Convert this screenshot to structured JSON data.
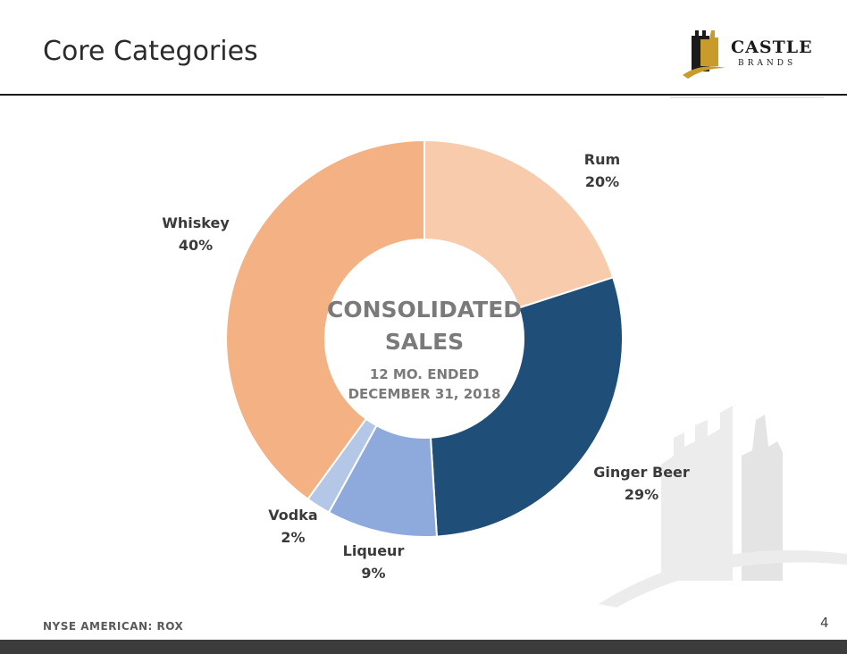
{
  "header": {
    "title": "Core Categories",
    "logo_line1": "CASTLE",
    "logo_line2": "BRANDS"
  },
  "footer": {
    "ticker": "NYSE AMERICAN: ROX",
    "page_number": "4"
  },
  "chart_data": {
    "type": "pie",
    "style": "donut",
    "center_title_line1": "CONSOLIDATED",
    "center_title_line2": "SALES",
    "center_sub_line1": "12 MO. ENDED",
    "center_sub_line2": "DECEMBER 31, 2018",
    "slices": [
      {
        "name": "Rum",
        "value": 20,
        "label": "20%",
        "color": "#F7CBAC"
      },
      {
        "name": "Ginger Beer",
        "value": 29,
        "label": "29%",
        "color": "#1F4E79"
      },
      {
        "name": "Liqueur",
        "value": 9,
        "label": "9%",
        "color": "#8EA9DB"
      },
      {
        "name": "Vodka",
        "value": 2,
        "label": "2%",
        "color": "#B4C7E7"
      },
      {
        "name": "Whiskey",
        "value": 40,
        "label": "40%",
        "color": "#F4B183"
      }
    ]
  }
}
